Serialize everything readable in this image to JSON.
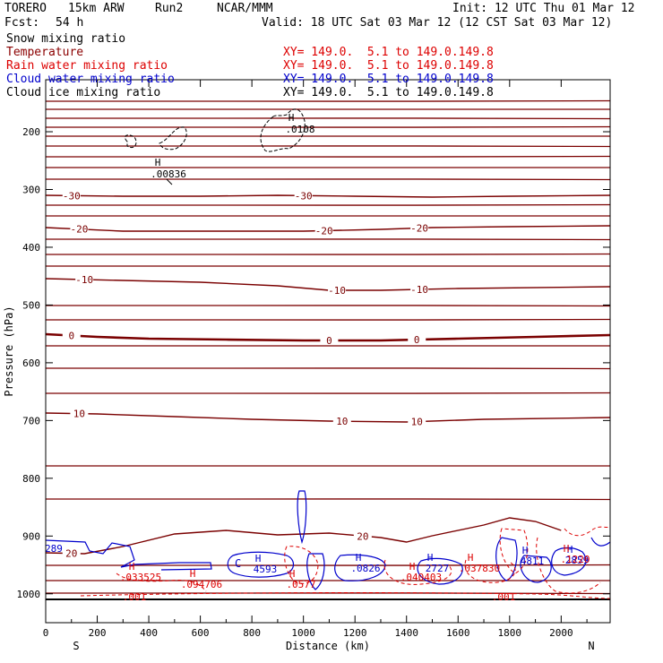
{
  "header": {
    "model": "TORERO",
    "resolution": "15km ARW",
    "run": "Run2",
    "org": "NCAR/MMM",
    "init": "Init: 12 UTC Thu 01 Mar 12",
    "fcst_label": "Fcst:",
    "fcst_value": "54 h",
    "valid": "Valid: 18 UTC Sat 03 Mar 12 (12 CST Sat 03 Mar 12)"
  },
  "legend": [
    {
      "name": "Snow mixing ratio",
      "color": "#000000",
      "xy": ""
    },
    {
      "name": "Temperature",
      "color": "#8b0000",
      "xy": "XY= 149.0.  5.1 to 149.0.149.8"
    },
    {
      "name": "Rain water mixing ratio",
      "color": "#dd0000",
      "xy": "XY= 149.0.  5.1 to 149.0.149.8"
    },
    {
      "name": "Cloud water mixing ratio",
      "color": "#0000cc",
      "xy": "XY= 149.0.  5.1 to 149.0.149.8"
    },
    {
      "name": "Cloud ice mixing ratio",
      "color": "#000000",
      "xy": "XY= 149.0.  5.1 to 149.0.149.8"
    }
  ],
  "colors": {
    "temperature": "#7a0000",
    "rain": "#dd0000",
    "cloud_water": "#0000cc",
    "cloud_ice": "#000000"
  },
  "chart_data": {
    "type": "cross-section contour",
    "xlabel": "Distance (km)",
    "ylabel": "Pressure (hPa)",
    "x_ticks": [
      0,
      200,
      400,
      600,
      800,
      1000,
      1200,
      1400,
      1600,
      1800,
      2000
    ],
    "y_ticks": [
      200,
      300,
      400,
      500,
      600,
      700,
      800,
      900,
      1000
    ],
    "xlim": [
      0,
      2190
    ],
    "ylim": [
      1050,
      110
    ],
    "end_left": "S",
    "end_right": "N",
    "temperature_contours": [
      {
        "label": "-30",
        "pts": [
          [
            0,
            218
          ],
          [
            300,
            219
          ],
          [
            600,
            219
          ],
          [
            900,
            218
          ],
          [
            1200,
            219
          ],
          [
            1500,
            220
          ],
          [
            1800,
            219
          ],
          [
            2190,
            218
          ]
        ],
        "labels_at": [
          100,
          1000
        ]
      },
      {
        "label": "-20",
        "pts": [
          [
            0,
            254
          ],
          [
            300,
            258
          ],
          [
            600,
            258
          ],
          [
            1000,
            258
          ],
          [
            1300,
            256
          ],
          [
            1500,
            254
          ],
          [
            1800,
            253
          ],
          [
            2190,
            252
          ]
        ],
        "labels_at": [
          130,
          1080,
          1450
        ]
      },
      {
        "label": "-10",
        "pts": [
          [
            0,
            311
          ],
          [
            300,
            313
          ],
          [
            600,
            315
          ],
          [
            900,
            319
          ],
          [
            1100,
            324
          ],
          [
            1300,
            324
          ],
          [
            1600,
            322
          ],
          [
            2190,
            320
          ]
        ],
        "labels_at": [
          150,
          1130,
          1450
        ]
      },
      {
        "label": "0",
        "pts": [
          [
            0,
            373
          ],
          [
            200,
            376
          ],
          [
            400,
            378
          ],
          [
            700,
            379
          ],
          [
            1000,
            380
          ],
          [
            1300,
            380
          ],
          [
            1600,
            378
          ],
          [
            1900,
            376
          ],
          [
            2190,
            374
          ]
        ],
        "labels_at": [
          100,
          1100,
          1440
        ]
      },
      {
        "label": "10",
        "pts": [
          [
            0,
            461
          ],
          [
            200,
            462
          ],
          [
            500,
            465
          ],
          [
            800,
            468
          ],
          [
            1100,
            470
          ],
          [
            1400,
            471
          ],
          [
            1700,
            468
          ],
          [
            2190,
            466
          ]
        ],
        "labels_at": [
          130,
          1150,
          1440
        ]
      },
      {
        "label": "20",
        "pts": [
          [
            0,
            617
          ],
          [
            150,
            618
          ],
          [
            300,
            610
          ],
          [
            500,
            596
          ],
          [
            700,
            592
          ],
          [
            900,
            597
          ],
          [
            1100,
            595
          ],
          [
            1300,
            600
          ],
          [
            1400,
            605
          ],
          [
            1500,
            598
          ],
          [
            1700,
            586
          ],
          [
            1800,
            578
          ],
          [
            1900,
            582
          ],
          [
            2000,
            592
          ]
        ],
        "labels_at": [
          100,
          1230
        ]
      }
    ],
    "temperature_unlabeled_levels": [
      113,
      122,
      132,
      142,
      152,
      163,
      175,
      187,
      200,
      229,
      241,
      267,
      284,
      297,
      341,
      357,
      386,
      411,
      439,
      520,
      557,
      631,
      648,
      662
    ],
    "cloud_ice_max": [
      ".0108",
      ".00836"
    ],
    "cloud_water_max": [
      "289",
      "4593",
      ".0826",
      "2727",
      "4811",
      "2859"
    ],
    "rain_max": [
      ".033525",
      ".094706",
      ".0577",
      ".040403",
      ".037830",
      ".1220"
    ],
    "rain_min": [
      ".001",
      ".001"
    ]
  }
}
